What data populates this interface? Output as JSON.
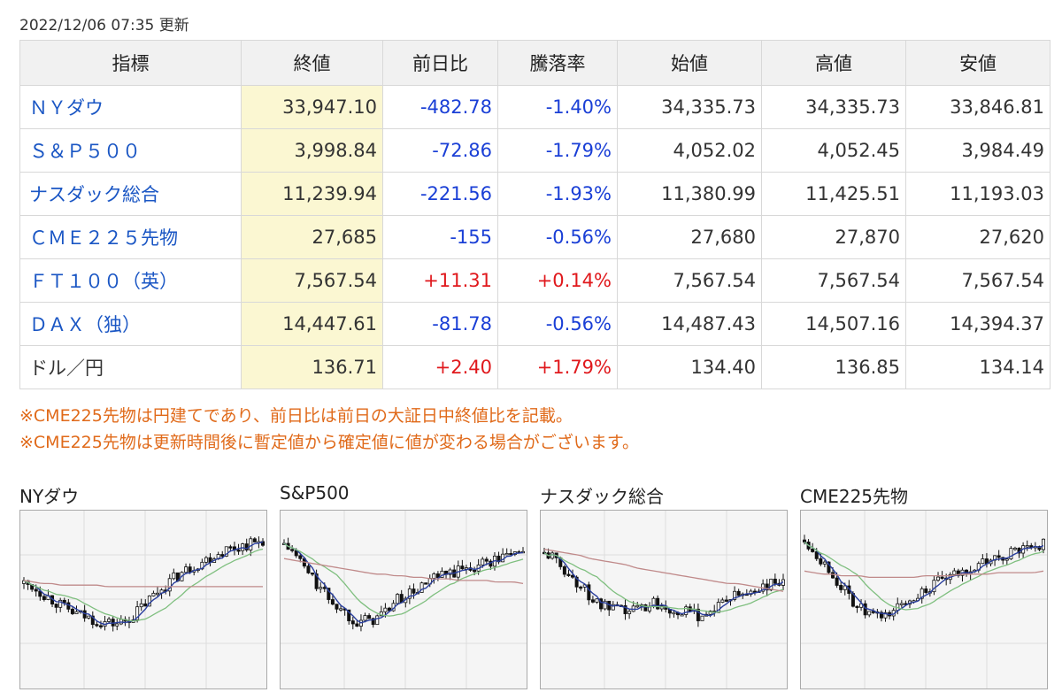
{
  "updated": "2022/12/06 07:35 更新",
  "table": {
    "headers": [
      "指標",
      "終値",
      "前日比",
      "騰落率",
      "始値",
      "高値",
      "安値"
    ],
    "rows": [
      {
        "name": "ＮＹダウ",
        "close": "33,947.10",
        "change": "-482.78",
        "rate": "-1.40%",
        "open": "34,335.73",
        "high": "34,335.73",
        "low": "33,846.81",
        "dir": "neg",
        "link": true
      },
      {
        "name": "Ｓ＆Ｐ５００",
        "close": "3,998.84",
        "change": "-72.86",
        "rate": "-1.79%",
        "open": "4,052.02",
        "high": "4,052.45",
        "low": "3,984.49",
        "dir": "neg",
        "link": true
      },
      {
        "name": "ナスダック総合",
        "close": "11,239.94",
        "change": "-221.56",
        "rate": "-1.93%",
        "open": "11,380.99",
        "high": "11,425.51",
        "low": "11,193.03",
        "dir": "neg",
        "link": true
      },
      {
        "name": "ＣＭＥ２２５先物",
        "close": "27,685",
        "change": "-155",
        "rate": "-0.56%",
        "open": "27,680",
        "high": "27,870",
        "low": "27,620",
        "dir": "neg",
        "link": true
      },
      {
        "name": "ＦＴ１００（英）",
        "close": "7,567.54",
        "change": "+11.31",
        "rate": "+0.14%",
        "open": "7,567.54",
        "high": "7,567.54",
        "low": "7,567.54",
        "dir": "pos",
        "link": true
      },
      {
        "name": "ＤＡＸ（独）",
        "close": "14,447.61",
        "change": "-81.78",
        "rate": "-0.56%",
        "open": "14,487.43",
        "high": "14,507.16",
        "low": "14,394.37",
        "dir": "neg",
        "link": true
      },
      {
        "name": "ドル／円",
        "close": "136.71",
        "change": "+2.40",
        "rate": "+1.79%",
        "open": "134.40",
        "high": "136.85",
        "low": "134.14",
        "dir": "pos",
        "link": false
      }
    ]
  },
  "notes": [
    "※CME225先物は円建てであり、前日比は前日の大証日中終値比を記載。",
    "※CME225先物は更新時間後に暫定値から確定値に値が変わる場合がございます。"
  ],
  "charts": [
    {
      "title": "NYダウ",
      "shape": [
        60,
        58,
        54,
        50,
        46,
        42,
        40,
        38,
        36,
        35,
        34,
        36,
        40,
        46,
        52,
        57,
        62,
        66,
        70,
        73,
        76,
        79,
        82,
        83,
        85,
        86,
        88
      ],
      "ma_long": [
        62,
        61,
        60,
        60,
        59,
        59,
        59,
        59,
        59,
        58,
        58,
        58,
        58,
        58,
        58,
        58,
        58,
        58,
        58,
        58,
        58,
        58,
        58,
        58,
        58,
        58,
        58
      ]
    },
    {
      "title": "S&P500",
      "shape": [
        85,
        80,
        72,
        64,
        56,
        50,
        44,
        40,
        36,
        36,
        38,
        42,
        48,
        52,
        54,
        58,
        62,
        64,
        66,
        68,
        70,
        72,
        74,
        75,
        78,
        80,
        82
      ],
      "ma_long": [
        76,
        75,
        74,
        73,
        72,
        71,
        70,
        69,
        68,
        67,
        66,
        66,
        65,
        65,
        64,
        64,
        63,
        63,
        63,
        62,
        62,
        62,
        62,
        61,
        61,
        61,
        60
      ]
    },
    {
      "title": "ナスダック総合",
      "shape": [
        80,
        76,
        70,
        64,
        58,
        52,
        46,
        44,
        42,
        42,
        44,
        46,
        48,
        46,
        44,
        42,
        40,
        40,
        42,
        46,
        50,
        52,
        54,
        56,
        58,
        60,
        62
      ],
      "ma_long": [
        82,
        81,
        80,
        79,
        78,
        76,
        75,
        74,
        73,
        72,
        70,
        69,
        68,
        67,
        66,
        65,
        64,
        63,
        62,
        61,
        60,
        60,
        59,
        58,
        57,
        56,
        55
      ]
    },
    {
      "title": "CME225先物",
      "shape": [
        88,
        82,
        74,
        66,
        58,
        50,
        44,
        40,
        38,
        40,
        44,
        48,
        52,
        56,
        58,
        62,
        64,
        66,
        70,
        72,
        74,
        76,
        78,
        80,
        82,
        84,
        86
      ],
      "ma_long": [
        68,
        67,
        66,
        66,
        65,
        65,
        65,
        64,
        64,
        64,
        64,
        64,
        64,
        65,
        65,
        65,
        65,
        66,
        66,
        66,
        66,
        67,
        67,
        67,
        67,
        67,
        68
      ]
    }
  ]
}
